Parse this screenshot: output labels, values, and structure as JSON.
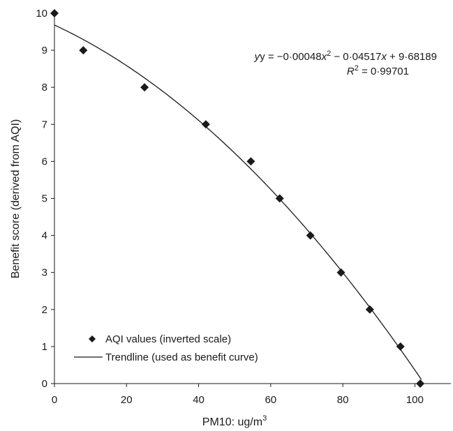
{
  "chart_data": {
    "type": "scatter",
    "title": "",
    "xlabel": "PM10: ug/m",
    "xlabel_superscript": "3",
    "ylabel": "Benefit score (derived from AQI)",
    "xlim": [
      0,
      110
    ],
    "ylim": [
      0,
      10
    ],
    "x_ticks": [
      0,
      20,
      40,
      60,
      80,
      100
    ],
    "y_ticks": [
      0,
      1,
      2,
      3,
      4,
      5,
      6,
      7,
      8,
      9,
      10
    ],
    "grid": false,
    "legend_position": "bottom-left",
    "series": [
      {
        "name": "AQI values (inverted scale)",
        "kind": "scatter",
        "marker": "diamond",
        "color": "#1a1a1a",
        "x": [
          0,
          8,
          25,
          42,
          54.5,
          62.5,
          71,
          79.5,
          87.5,
          96,
          101.5
        ],
        "y": [
          10,
          9,
          8,
          7,
          6,
          5,
          4,
          3,
          2,
          1,
          0
        ]
      },
      {
        "name": "Trendline (used as benefit curve)",
        "kind": "line",
        "color": "#1a1a1a",
        "equation": {
          "a": -0.00048,
          "b": -0.04517,
          "c": 9.68189
        },
        "x_range": [
          0,
          101.8
        ]
      }
    ],
    "annotation": {
      "eq_prefix": "y = −0·00048",
      "eq_x2": "x",
      "eq_sup2": "2",
      "eq_mid": " − 0·04517",
      "eq_x": "x",
      "eq_suffix": " + 9·68189",
      "r2_r": "R",
      "r2_sup": "2",
      "r2_value": " = 0·99701"
    }
  }
}
